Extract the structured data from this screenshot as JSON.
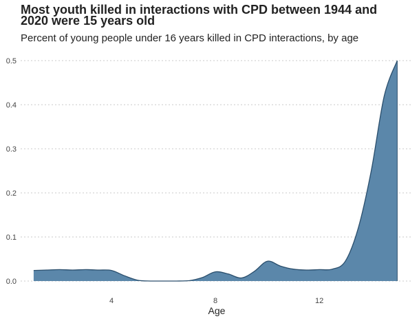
{
  "chart_data": {
    "type": "area",
    "title": "Most youth killed in interactions with CPD between 1944 and 2020 were 15 years old",
    "subtitle": "Percent of young people under 16 years killed in CPD interactions, by age",
    "xlabel": "Age",
    "ylabel": "",
    "xlim": [
      0.5,
      15.6
    ],
    "ylim": [
      0,
      0.5
    ],
    "x_ticks": [
      4,
      8,
      12
    ],
    "y_ticks": [
      0.0,
      0.1,
      0.2,
      0.3,
      0.4,
      0.5
    ],
    "y_tick_labels": [
      "0.0",
      "0.1",
      "0.2",
      "0.3",
      "0.4",
      "0.5"
    ],
    "grid": "horizontal dotted",
    "fill_color": "#5b87aa",
    "line_color": "#2a4e6c",
    "x": [
      1,
      1.5,
      2,
      2.5,
      3,
      3.5,
      4,
      4.5,
      5,
      5.5,
      6,
      6.5,
      7,
      7.5,
      8,
      8.5,
      9,
      9.5,
      10,
      10.5,
      11,
      11.5,
      12,
      12.5,
      13,
      13.5,
      14,
      14.5,
      15
    ],
    "y": [
      0.024,
      0.025,
      0.026,
      0.025,
      0.026,
      0.025,
      0.024,
      0.012,
      0.002,
      0.0,
      0.0,
      0.0,
      0.001,
      0.008,
      0.021,
      0.016,
      0.007,
      0.022,
      0.045,
      0.034,
      0.027,
      0.025,
      0.026,
      0.027,
      0.045,
      0.12,
      0.25,
      0.42,
      0.5
    ]
  }
}
